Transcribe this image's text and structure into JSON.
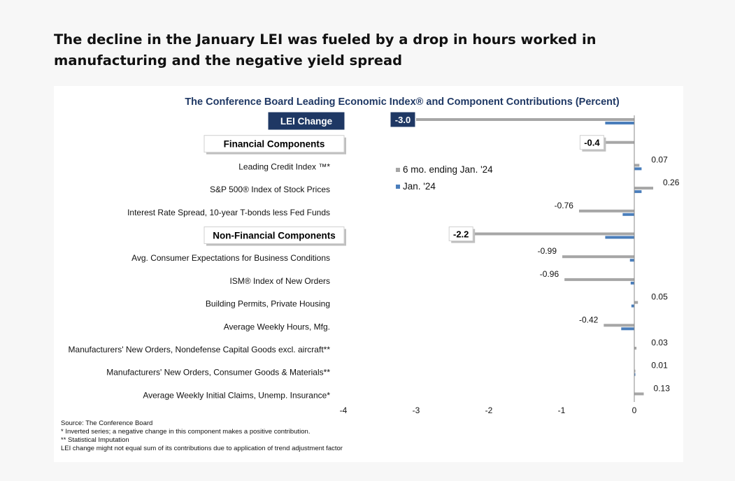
{
  "headline": "The decline in the January LEI was fueled by a drop in hours worked in manufacturing and the negative yield spread",
  "chart_data": {
    "type": "bar",
    "orientation": "horizontal",
    "title": "The Conference Board Leading Economic Index® and Component Contributions (Percent)",
    "xlim": [
      -4,
      0
    ],
    "x_ticks": [
      "-4",
      "-3",
      "-2",
      "-1",
      "0"
    ],
    "grid": false,
    "legend_position": "upper-middle",
    "series": [
      {
        "name": "6 mo. ending Jan. '24",
        "color": "#a6a6a6"
      },
      {
        "name": "Jan. '24",
        "color": "#4a7ebb"
      }
    ],
    "rows": [
      {
        "label": "LEI Change",
        "kind": "header",
        "six_month": -3.0,
        "jan": -0.4,
        "value_label": "-3.0"
      },
      {
        "label": "Financial Components",
        "kind": "header",
        "six_month": -0.4,
        "jan": 0.0,
        "value_label": "-0.4"
      },
      {
        "label": "Leading Credit Index  ™*",
        "kind": "item",
        "six_month": 0.07,
        "jan": 0.1,
        "value_label": "0.07"
      },
      {
        "label": "S&P 500® Index of Stock Prices",
        "kind": "item",
        "six_month": 0.26,
        "jan": 0.1,
        "value_label": "0.26"
      },
      {
        "label": "Interest Rate Spread, 10-year T-bonds less Fed Funds",
        "kind": "item",
        "six_month": -0.76,
        "jan": -0.16,
        "value_label": "-0.76"
      },
      {
        "label": "Non-Financial Components",
        "kind": "header",
        "six_month": -2.2,
        "jan": -0.4,
        "value_label": "-2.2"
      },
      {
        "label": "Avg. Consumer Expectations for Business Conditions",
        "kind": "item",
        "six_month": -0.99,
        "jan": -0.06,
        "value_label": "-0.99"
      },
      {
        "label": "ISM® Index of New Orders",
        "kind": "item",
        "six_month": -0.96,
        "jan": -0.05,
        "value_label": "-0.96"
      },
      {
        "label": "Building Permits, Private Housing",
        "kind": "item",
        "six_month": 0.05,
        "jan": -0.04,
        "value_label": "0.05"
      },
      {
        "label": "Average Weekly Hours, Mfg.",
        "kind": "item",
        "six_month": -0.42,
        "jan": -0.18,
        "value_label": "-0.42"
      },
      {
        "label": "Manufacturers' New Orders, Nondefense Capital Goods excl. aircraft**",
        "kind": "item",
        "six_month": 0.03,
        "jan": 0.0,
        "value_label": "0.03"
      },
      {
        "label": "Manufacturers' New Orders, Consumer Goods & Materials**",
        "kind": "item",
        "six_month": 0.01,
        "jan": 0.01,
        "value_label": "0.01"
      },
      {
        "label": "Average Weekly Initial Claims, Unemp. Insurance*",
        "kind": "item",
        "six_month": 0.13,
        "jan": 0.0,
        "value_label": "0.13"
      }
    ],
    "notes": [
      "Source: The Conference Board",
      "*  Inverted series; a negative change in this component makes a positive contribution.",
      "**  Statistical Imputation",
      "LEI change might not equal sum of its contributions due to application of trend adjustment factor"
    ]
  }
}
